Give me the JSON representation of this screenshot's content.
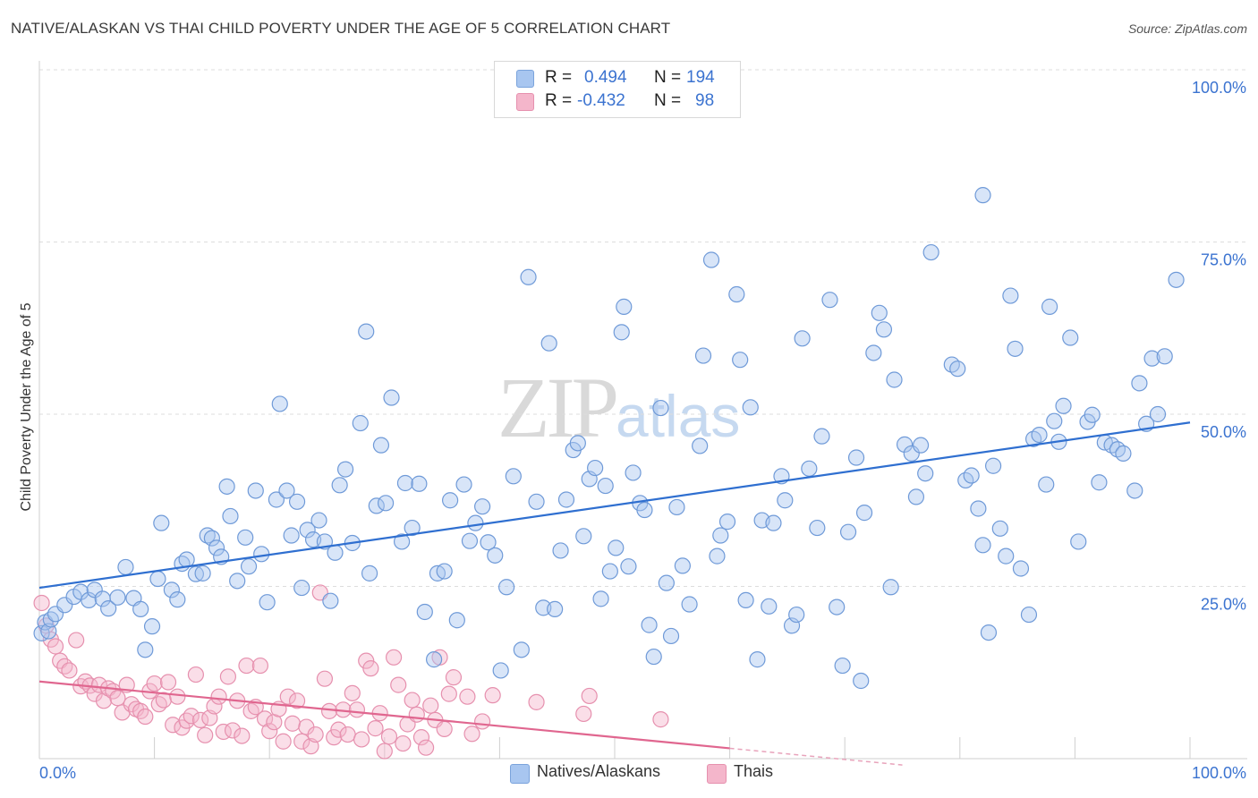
{
  "title": "NATIVE/ALASKAN VS THAI CHILD POVERTY UNDER THE AGE OF 5 CORRELATION CHART",
  "source": "Source: ZipAtlas.com",
  "watermark": {
    "zip": "ZIP",
    "atlas": "atlas"
  },
  "colors": {
    "blue": "#3b73d0",
    "blue_fill": "#a8c6f0",
    "blue_line": "#2f6fd0",
    "pink": "#e06590",
    "pink_fill": "#f4b6cb",
    "pink_line": "#e0668f",
    "grid": "#dddddd"
  },
  "legend": {
    "rows": [
      {
        "r_label": "R =",
        "r_value": "0.494",
        "n_label": "N =",
        "n_value": "194",
        "color": "#a8c6f0"
      },
      {
        "r_label": "R =",
        "r_value": "-0.432",
        "n_label": "N =",
        "n_value": "98",
        "color": "#f4b6cb"
      }
    ]
  },
  "chart_data": {
    "type": "scatter",
    "title": "NATIVE/ALASKAN VS THAI CHILD POVERTY UNDER THE AGE OF 5 CORRELATION CHART",
    "xlabel": "",
    "ylabel": "Child Poverty Under the Age of 5",
    "xlim": [
      0,
      100
    ],
    "ylim": [
      0,
      100
    ],
    "x_tick_labels": {
      "left": "0.0%",
      "right": "100.0%"
    },
    "y_ticks": [
      {
        "value": 25,
        "label": "25.0%"
      },
      {
        "value": 50,
        "label": "50.0%"
      },
      {
        "value": 75,
        "label": "75.0%"
      },
      {
        "value": 100,
        "label": "100.0%"
      }
    ],
    "series": [
      {
        "name": "Natives/Alaskans",
        "color": "#a8c6f0",
        "trend": {
          "x": [
            0,
            100
          ],
          "y": [
            24.8,
            48.8
          ],
          "dashed_from": null
        },
        "points": [
          [
            0.2,
            18.2
          ],
          [
            0.5,
            19.8
          ],
          [
            0.8,
            18.5
          ],
          [
            1.0,
            20.2
          ],
          [
            1.4,
            21.0
          ],
          [
            2.2,
            22.3
          ],
          [
            3.0,
            23.5
          ],
          [
            3.6,
            24.2
          ],
          [
            4.3,
            23.0
          ],
          [
            4.8,
            24.5
          ],
          [
            5.5,
            23.2
          ],
          [
            6.0,
            21.8
          ],
          [
            6.8,
            23.4
          ],
          [
            7.5,
            27.8
          ],
          [
            8.2,
            23.3
          ],
          [
            8.8,
            21.7
          ],
          [
            9.2,
            15.8
          ],
          [
            9.8,
            19.2
          ],
          [
            10.3,
            26.1
          ],
          [
            10.6,
            34.2
          ],
          [
            11.5,
            24.5
          ],
          [
            12.0,
            23.1
          ],
          [
            12.4,
            28.3
          ],
          [
            12.8,
            28.9
          ],
          [
            13.6,
            26.8
          ],
          [
            14.2,
            26.9
          ],
          [
            14.6,
            32.4
          ],
          [
            15.0,
            32.0
          ],
          [
            15.4,
            30.6
          ],
          [
            15.8,
            29.3
          ],
          [
            16.3,
            39.5
          ],
          [
            16.6,
            35.2
          ],
          [
            17.2,
            25.8
          ],
          [
            17.9,
            32.1
          ],
          [
            18.2,
            27.9
          ],
          [
            18.8,
            38.9
          ],
          [
            19.3,
            29.7
          ],
          [
            19.8,
            22.7
          ],
          [
            20.6,
            37.6
          ],
          [
            20.9,
            51.5
          ],
          [
            21.5,
            38.9
          ],
          [
            21.9,
            32.4
          ],
          [
            22.4,
            37.3
          ],
          [
            22.8,
            24.8
          ],
          [
            23.3,
            33.2
          ],
          [
            23.8,
            31.8
          ],
          [
            24.3,
            34.6
          ],
          [
            24.8,
            31.5
          ],
          [
            25.3,
            22.9
          ],
          [
            25.7,
            29.9
          ],
          [
            26.1,
            39.7
          ],
          [
            26.6,
            42.0
          ],
          [
            27.2,
            31.3
          ],
          [
            27.9,
            48.7
          ],
          [
            28.4,
            62.0
          ],
          [
            28.7,
            26.9
          ],
          [
            29.3,
            36.7
          ],
          [
            29.7,
            45.5
          ],
          [
            30.1,
            37.1
          ],
          [
            30.6,
            52.4
          ],
          [
            31.5,
            31.5
          ],
          [
            31.8,
            40.0
          ],
          [
            32.4,
            33.5
          ],
          [
            33.0,
            39.9
          ],
          [
            33.5,
            21.3
          ],
          [
            34.3,
            14.4
          ],
          [
            34.6,
            26.9
          ],
          [
            35.2,
            27.2
          ],
          [
            35.7,
            37.5
          ],
          [
            36.3,
            20.1
          ],
          [
            36.9,
            39.8
          ],
          [
            37.4,
            31.6
          ],
          [
            37.9,
            34.2
          ],
          [
            38.5,
            36.6
          ],
          [
            39.0,
            31.4
          ],
          [
            39.6,
            29.5
          ],
          [
            40.1,
            12.8
          ],
          [
            40.6,
            24.9
          ],
          [
            41.2,
            41.0
          ],
          [
            41.9,
            15.8
          ],
          [
            42.5,
            69.9
          ],
          [
            43.2,
            37.3
          ],
          [
            43.8,
            21.9
          ],
          [
            44.3,
            60.3
          ],
          [
            44.8,
            21.7
          ],
          [
            45.3,
            30.2
          ],
          [
            45.8,
            37.6
          ],
          [
            46.4,
            44.8
          ],
          [
            46.8,
            45.8
          ],
          [
            47.3,
            32.3
          ],
          [
            47.8,
            40.6
          ],
          [
            48.3,
            42.2
          ],
          [
            48.8,
            23.2
          ],
          [
            49.2,
            39.6
          ],
          [
            49.6,
            27.2
          ],
          [
            50.1,
            30.6
          ],
          [
            50.6,
            61.9
          ],
          [
            50.8,
            65.6
          ],
          [
            51.2,
            27.9
          ],
          [
            51.6,
            41.5
          ],
          [
            52.2,
            37.1
          ],
          [
            52.6,
            36.1
          ],
          [
            53.0,
            19.4
          ],
          [
            53.4,
            14.8
          ],
          [
            54.0,
            50.9
          ],
          [
            54.5,
            25.5
          ],
          [
            54.9,
            17.8
          ],
          [
            55.4,
            36.5
          ],
          [
            55.9,
            28.0
          ],
          [
            56.5,
            22.4
          ],
          [
            57.4,
            45.4
          ],
          [
            57.7,
            58.5
          ],
          [
            58.4,
            72.4
          ],
          [
            58.9,
            29.4
          ],
          [
            59.2,
            32.4
          ],
          [
            59.8,
            34.4
          ],
          [
            60.6,
            67.4
          ],
          [
            60.9,
            57.9
          ],
          [
            61.4,
            23.0
          ],
          [
            61.8,
            51.0
          ],
          [
            62.4,
            14.4
          ],
          [
            62.8,
            34.6
          ],
          [
            63.4,
            22.1
          ],
          [
            63.8,
            34.2
          ],
          [
            64.5,
            41.0
          ],
          [
            64.8,
            37.5
          ],
          [
            65.4,
            19.3
          ],
          [
            65.8,
            20.9
          ],
          [
            66.3,
            61.0
          ],
          [
            66.9,
            42.1
          ],
          [
            67.6,
            33.5
          ],
          [
            68.0,
            46.8
          ],
          [
            68.7,
            66.6
          ],
          [
            69.3,
            22.0
          ],
          [
            69.8,
            13.5
          ],
          [
            70.3,
            32.9
          ],
          [
            71.0,
            43.7
          ],
          [
            71.4,
            11.3
          ],
          [
            71.7,
            35.7
          ],
          [
            72.5,
            58.9
          ],
          [
            73.0,
            64.7
          ],
          [
            73.4,
            62.3
          ],
          [
            74.0,
            24.9
          ],
          [
            74.3,
            55.0
          ],
          [
            75.2,
            45.6
          ],
          [
            75.8,
            44.3
          ],
          [
            76.2,
            38.0
          ],
          [
            76.6,
            45.5
          ],
          [
            77.0,
            41.4
          ],
          [
            77.5,
            73.5
          ],
          [
            79.3,
            57.2
          ],
          [
            79.8,
            56.6
          ],
          [
            80.5,
            40.4
          ],
          [
            81.0,
            41.1
          ],
          [
            81.6,
            36.3
          ],
          [
            82.0,
            31.0
          ],
          [
            82.5,
            18.3
          ],
          [
            82.9,
            42.5
          ],
          [
            83.5,
            33.4
          ],
          [
            84.0,
            29.4
          ],
          [
            84.4,
            67.2
          ],
          [
            84.8,
            59.5
          ],
          [
            85.3,
            27.6
          ],
          [
            86.0,
            20.9
          ],
          [
            86.4,
            46.4
          ],
          [
            86.9,
            47.0
          ],
          [
            87.5,
            39.8
          ],
          [
            87.8,
            65.6
          ],
          [
            88.2,
            49.0
          ],
          [
            88.6,
            46.0
          ],
          [
            89.0,
            51.2
          ],
          [
            89.6,
            61.1
          ],
          [
            90.3,
            31.5
          ],
          [
            91.1,
            48.9
          ],
          [
            91.5,
            49.9
          ],
          [
            92.1,
            40.1
          ],
          [
            92.6,
            45.9
          ],
          [
            93.2,
            45.5
          ],
          [
            93.7,
            44.9
          ],
          [
            94.2,
            44.3
          ],
          [
            95.2,
            38.9
          ],
          [
            95.6,
            54.5
          ],
          [
            96.2,
            48.6
          ],
          [
            96.7,
            58.1
          ],
          [
            97.2,
            50.0
          ],
          [
            97.8,
            58.4
          ],
          [
            82.0,
            81.8
          ],
          [
            98.8,
            69.5
          ]
        ]
      },
      {
        "name": "Thais",
        "color": "#f4b6cb",
        "trend": {
          "x": [
            0,
            60
          ],
          "y": [
            11.2,
            1.5
          ],
          "dashed_to": 75
        },
        "points": [
          [
            0.2,
            22.6
          ],
          [
            0.6,
            19.3
          ],
          [
            1.0,
            17.3
          ],
          [
            1.4,
            16.3
          ],
          [
            1.8,
            14.2
          ],
          [
            2.2,
            13.4
          ],
          [
            2.6,
            12.8
          ],
          [
            3.2,
            17.2
          ],
          [
            3.6,
            10.5
          ],
          [
            4.0,
            11.2
          ],
          [
            4.4,
            10.6
          ],
          [
            4.8,
            9.4
          ],
          [
            5.2,
            10.7
          ],
          [
            5.6,
            8.4
          ],
          [
            6.0,
            10.2
          ],
          [
            6.4,
            9.8
          ],
          [
            6.8,
            8.8
          ],
          [
            7.2,
            6.7
          ],
          [
            7.6,
            10.7
          ],
          [
            8.0,
            7.9
          ],
          [
            8.4,
            7.2
          ],
          [
            8.8,
            6.9
          ],
          [
            9.2,
            6.1
          ],
          [
            9.6,
            9.8
          ],
          [
            10.0,
            10.9
          ],
          [
            10.4,
            7.9
          ],
          [
            10.8,
            8.5
          ],
          [
            11.2,
            11.1
          ],
          [
            11.6,
            4.9
          ],
          [
            12.0,
            9.0
          ],
          [
            12.4,
            4.5
          ],
          [
            12.8,
            5.5
          ],
          [
            13.2,
            6.2
          ],
          [
            13.6,
            12.2
          ],
          [
            14.0,
            5.6
          ],
          [
            14.4,
            3.4
          ],
          [
            14.8,
            5.9
          ],
          [
            15.2,
            7.6
          ],
          [
            15.6,
            9.0
          ],
          [
            16.0,
            3.9
          ],
          [
            16.4,
            11.9
          ],
          [
            16.8,
            4.1
          ],
          [
            17.2,
            8.4
          ],
          [
            17.6,
            3.3
          ],
          [
            18.0,
            13.5
          ],
          [
            18.4,
            6.9
          ],
          [
            18.8,
            7.5
          ],
          [
            19.2,
            13.5
          ],
          [
            19.6,
            5.8
          ],
          [
            20.0,
            4.0
          ],
          [
            20.4,
            5.3
          ],
          [
            20.8,
            7.2
          ],
          [
            21.2,
            2.5
          ],
          [
            21.6,
            9.0
          ],
          [
            22.0,
            5.1
          ],
          [
            22.4,
            8.4
          ],
          [
            22.8,
            2.5
          ],
          [
            23.2,
            4.6
          ],
          [
            23.6,
            1.8
          ],
          [
            24.0,
            3.5
          ],
          [
            24.4,
            24.1
          ],
          [
            24.8,
            11.6
          ],
          [
            25.2,
            6.9
          ],
          [
            25.6,
            3.1
          ],
          [
            26.0,
            4.2
          ],
          [
            26.4,
            7.1
          ],
          [
            26.8,
            3.5
          ],
          [
            27.2,
            9.5
          ],
          [
            27.6,
            7.1
          ],
          [
            28.0,
            2.8
          ],
          [
            28.4,
            14.2
          ],
          [
            28.8,
            13.1
          ],
          [
            29.2,
            4.4
          ],
          [
            29.6,
            6.6
          ],
          [
            30.0,
            1.1
          ],
          [
            30.4,
            3.2
          ],
          [
            30.8,
            14.7
          ],
          [
            31.2,
            10.7
          ],
          [
            31.6,
            2.2
          ],
          [
            32.0,
            5.0
          ],
          [
            32.4,
            8.5
          ],
          [
            32.8,
            6.4
          ],
          [
            33.2,
            3.1
          ],
          [
            33.6,
            1.6
          ],
          [
            34.0,
            7.7
          ],
          [
            34.4,
            5.6
          ],
          [
            34.8,
            14.7
          ],
          [
            35.2,
            4.3
          ],
          [
            35.6,
            9.4
          ],
          [
            36.0,
            11.8
          ],
          [
            37.2,
            9.0
          ],
          [
            37.6,
            3.6
          ],
          [
            38.5,
            5.4
          ],
          [
            39.4,
            9.2
          ],
          [
            43.2,
            8.2
          ],
          [
            47.3,
            6.5
          ],
          [
            47.8,
            9.1
          ],
          [
            54.0,
            5.7
          ]
        ]
      }
    ],
    "legend": [
      "Natives/Alaskans",
      "Thais"
    ]
  }
}
